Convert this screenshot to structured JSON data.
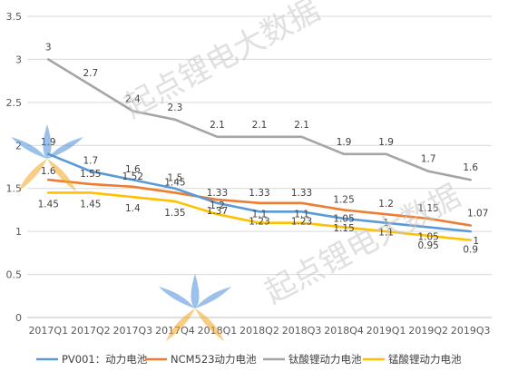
{
  "chart_data": {
    "type": "line",
    "title": "",
    "xlabel": "",
    "ylabel": "",
    "ylim": [
      0,
      3.5
    ],
    "yticks": [
      0,
      0.5,
      1,
      1.5,
      2,
      2.5,
      3,
      3.5
    ],
    "ytick_labels": [
      "0",
      "0.5",
      "1",
      "1.5",
      "2",
      "2.5",
      "3",
      "3.5"
    ],
    "grid": true,
    "legend_position": "bottom",
    "categories": [
      "2017Q1",
      "2017Q2",
      "2017Q3",
      "2017Q4",
      "2018Q1",
      "2018Q2",
      "2018Q3",
      "2018Q4",
      "2019Q1",
      "2019Q2",
      "2019Q3"
    ],
    "series": [
      {
        "name": "PV001：动力电池",
        "color": "#5b9bd5",
        "values": [
          1.9,
          1.7,
          1.6,
          1.5,
          1.33,
          1.23,
          1.23,
          1.15,
          1.1,
          1.05,
          1.0
        ],
        "labels": [
          "1.9",
          "1.7",
          "1.6",
          "1.5",
          "1.33",
          "1.23",
          "1.23",
          "1.15",
          "1.1",
          "1.05",
          "1"
        ]
      },
      {
        "name": "NCM523动力电池",
        "color": "#ed7d31",
        "values": [
          1.6,
          1.55,
          1.52,
          1.45,
          1.37,
          1.33,
          1.33,
          1.25,
          1.2,
          1.15,
          1.07
        ],
        "labels": [
          "1.6",
          "1.55",
          "1.52",
          "1.45",
          "1.37",
          "1.33",
          "1.33",
          "1.25",
          "1.2",
          "1.15",
          "1.07"
        ]
      },
      {
        "name": "钛酸锂动力电池",
        "color": "#a5a5a5",
        "values": [
          3.0,
          2.7,
          2.4,
          2.3,
          2.1,
          2.1,
          2.1,
          1.9,
          1.9,
          1.7,
          1.6
        ],
        "labels": [
          "3",
          "2.7",
          "2.4",
          "2.3",
          "2.1",
          "2.1",
          "2.1",
          "1.9",
          "1.9",
          "1.7",
          "1.6"
        ]
      },
      {
        "name": "锰酸锂动力电池",
        "color": "#ffc000",
        "values": [
          1.45,
          1.45,
          1.4,
          1.35,
          1.2,
          1.1,
          1.1,
          1.05,
          1.0,
          0.95,
          0.9
        ],
        "labels": [
          "1.45",
          "1.45",
          "1.4",
          "1.35",
          "1.2",
          "1.1",
          "1.1",
          "1.05",
          "1",
          "0.95",
          "0.9"
        ]
      }
    ]
  },
  "watermark": {
    "text": "起点锂电大数据",
    "logo_colors": [
      "#4a90d9",
      "#f5a623"
    ]
  }
}
